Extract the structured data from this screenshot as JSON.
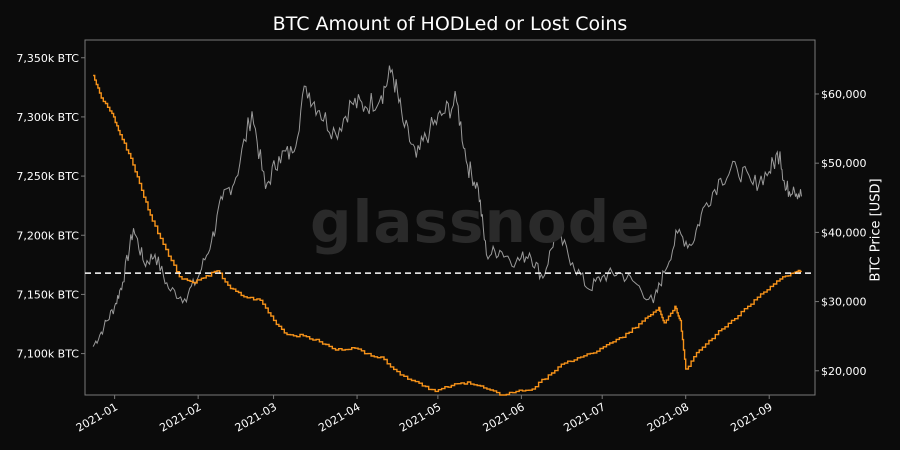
{
  "chart_data": {
    "type": "line",
    "title": "BTC Amount of HODLed or Lost Coins",
    "y2label": "BTC Price [USD]",
    "watermark": "glassnode",
    "x_ticks": [
      "2021-01",
      "2021-02",
      "2021-03",
      "2021-04",
      "2021-05",
      "2021-06",
      "2021-07",
      "2021-08",
      "2021-09"
    ],
    "y_left": {
      "ticks": [
        "7,100k BTC",
        "7,150k BTC",
        "7,200k BTC",
        "7,250k BTC",
        "7,300k BTC",
        "7,350k BTC"
      ],
      "range": [
        7065,
        7365
      ],
      "unit": "k BTC"
    },
    "y_right": {
      "ticks": [
        "$20,000",
        "$30,000",
        "$40,000",
        "$50,000",
        "$60,000"
      ],
      "range": [
        16500,
        67800
      ],
      "unit": "USD"
    },
    "reference_line": {
      "value": 7168,
      "axis": "left",
      "style": "dashed"
    },
    "colors": {
      "background": "#0b0b0b",
      "axes": "#7a7a7a",
      "hodled_series": "#f7931a",
      "price_series": "#9a9a9a",
      "reference_line": "#ffffff"
    },
    "series": [
      {
        "name": "",
        "axis": "left",
        "x": [
          "2020-12-24",
          "2020-12-27",
          "2020-12-31",
          "2021-01-03",
          "2021-01-07",
          "2021-01-11",
          "2021-01-15",
          "2021-01-20",
          "2021-01-25",
          "2021-01-30",
          "2021-02-03",
          "2021-02-08",
          "2021-02-13",
          "2021-02-18",
          "2021-02-24",
          "2021-03-01",
          "2021-03-06",
          "2021-03-12",
          "2021-03-18",
          "2021-03-24",
          "2021-03-30",
          "2021-04-05",
          "2021-04-11",
          "2021-04-17",
          "2021-04-24",
          "2021-04-30",
          "2021-05-06",
          "2021-05-12",
          "2021-05-18",
          "2021-05-24",
          "2021-05-30",
          "2021-06-05",
          "2021-06-11",
          "2021-06-17",
          "2021-06-23",
          "2021-06-29",
          "2021-07-05",
          "2021-07-11",
          "2021-07-17",
          "2021-07-22",
          "2021-07-24",
          "2021-07-28",
          "2021-07-30",
          "2021-08-01",
          "2021-08-06",
          "2021-08-12",
          "2021-08-18",
          "2021-08-24",
          "2021-08-30",
          "2021-09-05",
          "2021-09-10",
          "2021-09-13"
        ],
        "values": [
          7335,
          7316,
          7303,
          7285,
          7265,
          7238,
          7212,
          7188,
          7165,
          7160,
          7164,
          7170,
          7155,
          7148,
          7145,
          7128,
          7116,
          7115,
          7110,
          7103,
          7105,
          7100,
          7095,
          7082,
          7075,
          7068,
          7073,
          7076,
          7071,
          7065,
          7068,
          7070,
          7082,
          7092,
          7097,
          7102,
          7110,
          7118,
          7130,
          7139,
          7126,
          7140,
          7128,
          7087,
          7103,
          7116,
          7128,
          7140,
          7152,
          7163,
          7168,
          7170
        ]
      },
      {
        "name": "",
        "axis": "right",
        "x": [
          "2020-12-24",
          "2020-12-28",
          "2021-01-01",
          "2021-01-04",
          "2021-01-08",
          "2021-01-12",
          "2021-01-16",
          "2021-01-21",
          "2021-01-27",
          "2021-02-01",
          "2021-02-06",
          "2021-02-10",
          "2021-02-15",
          "2021-02-21",
          "2021-02-26",
          "2021-03-03",
          "2021-03-08",
          "2021-03-13",
          "2021-03-18",
          "2021-03-24",
          "2021-03-30",
          "2021-04-04",
          "2021-04-10",
          "2021-04-14",
          "2021-04-18",
          "2021-04-23",
          "2021-04-28",
          "2021-05-03",
          "2021-05-08",
          "2021-05-12",
          "2021-05-16",
          "2021-05-19",
          "2021-05-24",
          "2021-05-30",
          "2021-06-04",
          "2021-06-09",
          "2021-06-14",
          "2021-06-20",
          "2021-06-26",
          "2021-07-01",
          "2021-07-07",
          "2021-07-13",
          "2021-07-20",
          "2021-07-24",
          "2021-07-29",
          "2021-08-03",
          "2021-08-08",
          "2021-08-14",
          "2021-08-20",
          "2021-08-26",
          "2021-09-01",
          "2021-09-05",
          "2021-09-07",
          "2021-09-10",
          "2021-09-13"
        ],
        "values": [
          23500,
          26300,
          29300,
          32800,
          40600,
          35500,
          36800,
          31900,
          30400,
          33500,
          38800,
          44800,
          47900,
          57500,
          46300,
          51000,
          51500,
          61100,
          57600,
          54300,
          58700,
          58200,
          59800,
          63500,
          56000,
          50800,
          54800,
          57200,
          58900,
          49700,
          46400,
          36800,
          37400,
          35700,
          37000,
          33400,
          40200,
          35600,
          31800,
          33600,
          34200,
          32800,
          29800,
          34200,
          39900,
          38100,
          43800,
          47800,
          49300,
          46900,
          48800,
          51700,
          46100,
          46600,
          45200
        ]
      }
    ]
  }
}
